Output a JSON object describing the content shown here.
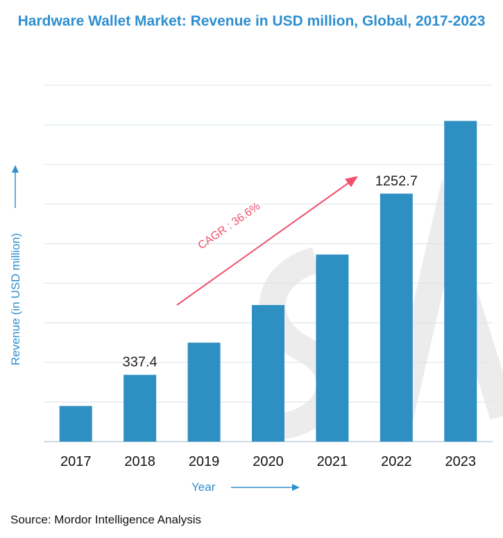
{
  "chart_data": {
    "type": "bar",
    "title": "Hardware Wallet Market: Revenue in USD million, Global, 2017-2023",
    "categories": [
      "2017",
      "2018",
      "2019",
      "2020",
      "2021",
      "2022",
      "2023"
    ],
    "values": [
      180,
      337.4,
      500,
      690,
      945,
      1252.7,
      1620
    ],
    "data_labels": [
      {
        "category": "2018",
        "text": "337.4"
      },
      {
        "category": "2022",
        "text": "1252.7"
      }
    ],
    "xlabel": "Year",
    "ylabel": "Revenue (in USD million)",
    "ylim": [
      0,
      1800
    ],
    "y_tick_labels_shown": false,
    "grid": true,
    "bar_color": "#2e8fc2",
    "annotation": {
      "text": "CAGR : 36.6%",
      "color": "#f0506e"
    }
  },
  "source": "Source: Mordor Intelligence Analysis",
  "colors": {
    "title": "#2e8fcf",
    "axis_label": "#2e8fcf",
    "grid": "#d5e3ec",
    "watermark": "#ededed"
  }
}
